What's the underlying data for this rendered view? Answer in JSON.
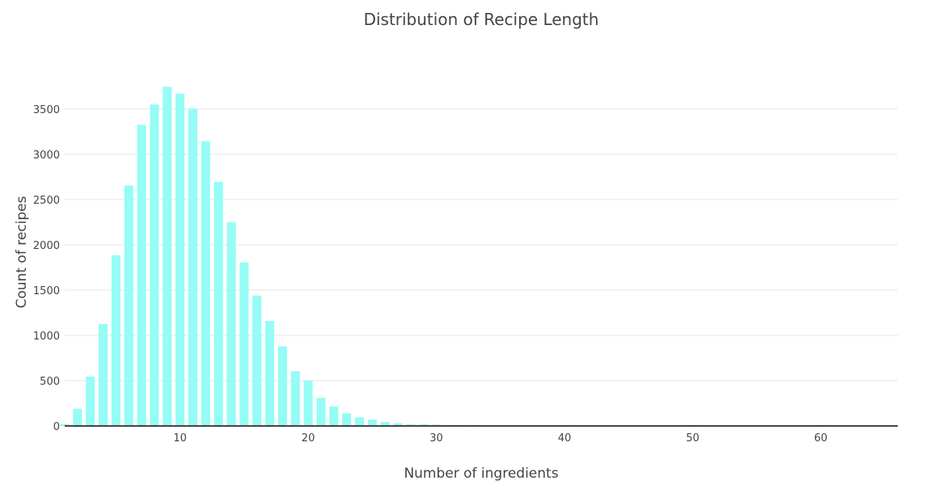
{
  "chart_data": {
    "type": "bar",
    "title": "Distribution of Recipe Length",
    "xlabel": "Number of ingredients",
    "ylabel": "Count of recipes",
    "bar_color": "#95fcf6",
    "grid_color": "#e6e6e6",
    "axis_color": "#444444",
    "xlim": [
      1,
      66
    ],
    "ylim": [
      0,
      3900
    ],
    "x_ticks": [
      10,
      20,
      30,
      40,
      50,
      60
    ],
    "y_ticks": [
      0,
      500,
      1000,
      1500,
      2000,
      2500,
      3000,
      3500
    ],
    "grid": true,
    "x": [
      1,
      2,
      3,
      4,
      5,
      6,
      7,
      8,
      9,
      10,
      11,
      12,
      13,
      14,
      15,
      16,
      17,
      18,
      19,
      20,
      21,
      22,
      23,
      24,
      25,
      26,
      27,
      28,
      29,
      30,
      31,
      32,
      33,
      34,
      35,
      36,
      37,
      38,
      39,
      40,
      41,
      43,
      49,
      52,
      59,
      65
    ],
    "values": [
      22,
      190,
      545,
      1125,
      1885,
      2655,
      3325,
      3550,
      3745,
      3670,
      3505,
      3145,
      2695,
      2250,
      1805,
      1440,
      1160,
      880,
      605,
      500,
      310,
      215,
      140,
      95,
      70,
      45,
      30,
      20,
      20,
      15,
      10,
      10,
      10,
      8,
      6,
      5,
      5,
      4,
      4,
      3,
      3,
      2,
      2,
      2,
      1,
      2
    ]
  }
}
